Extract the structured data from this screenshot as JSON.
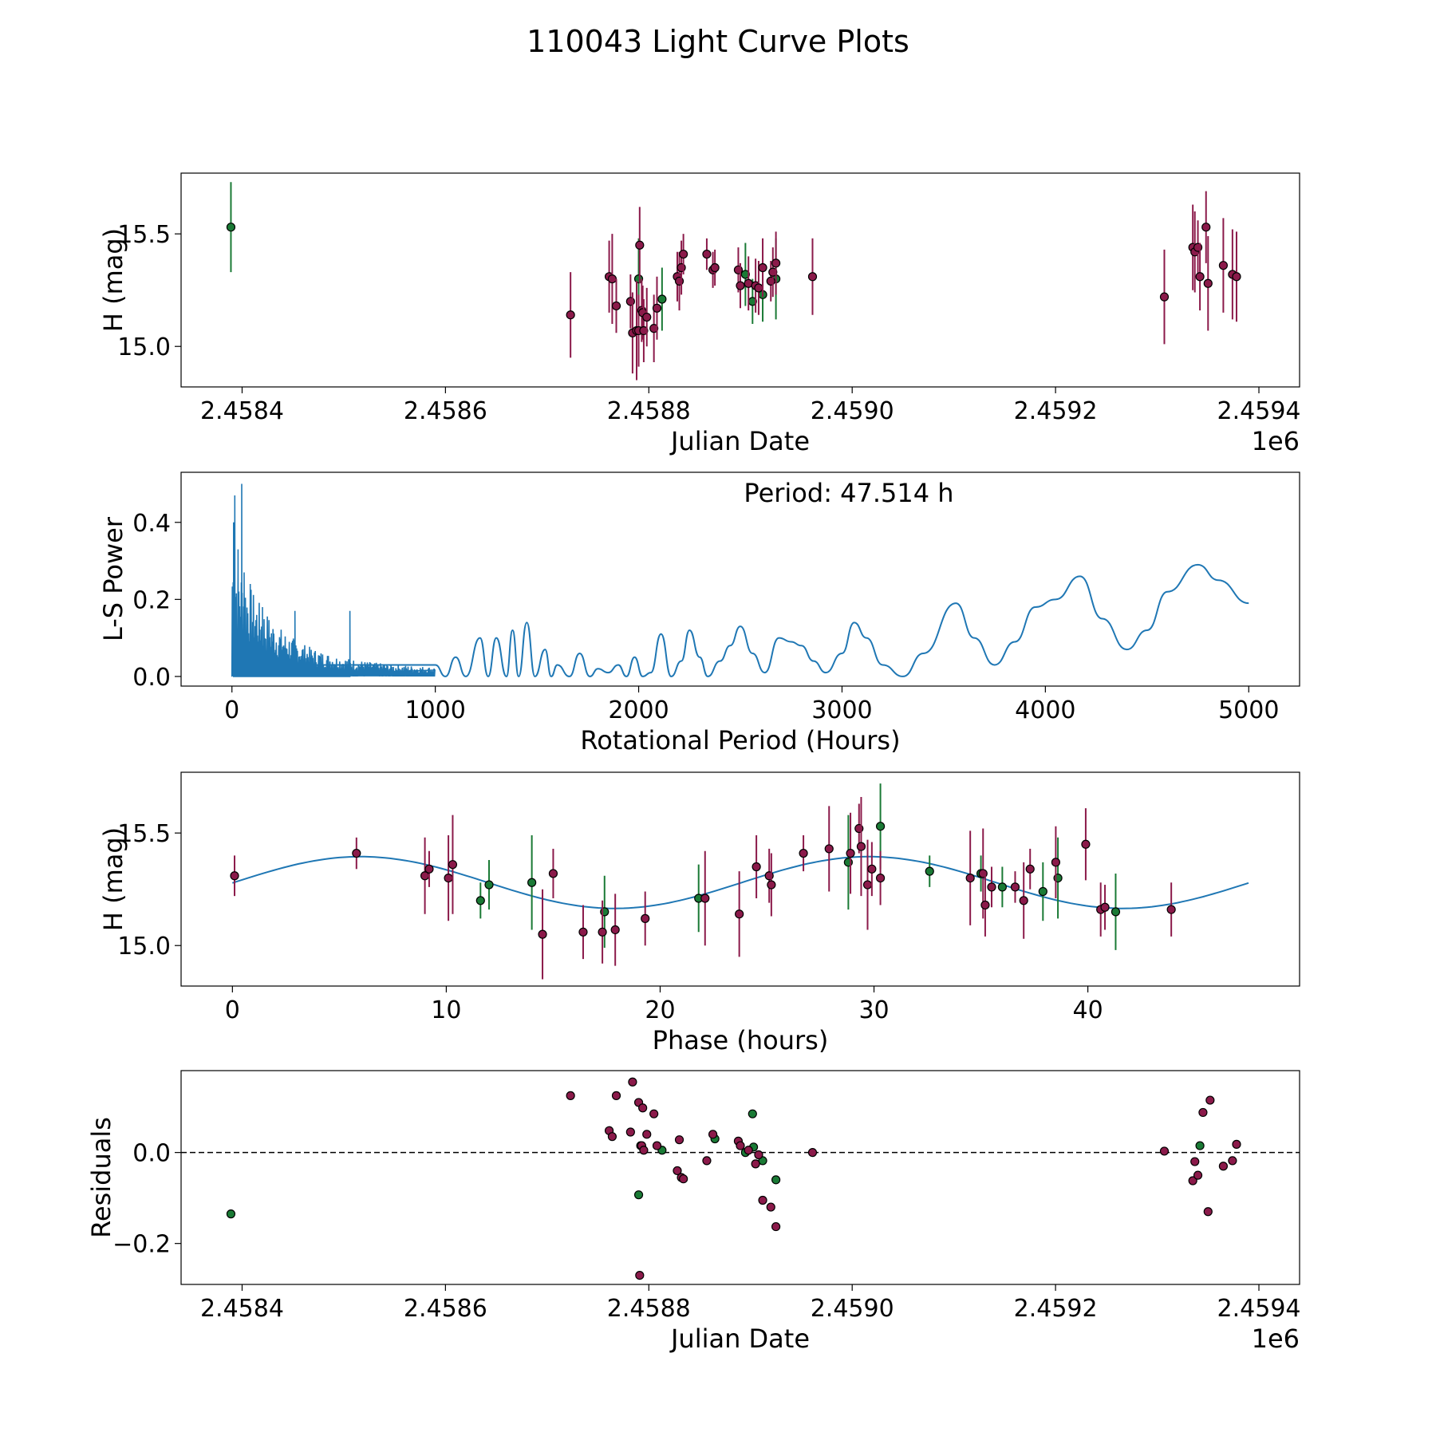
{
  "title": "110043 Light Curve Plots",
  "colors": {
    "mag": "#8b1a4a",
    "green": "#1a7a35",
    "curve": "#1f77b4",
    "dot_edge": "#000000"
  },
  "chart_data": [
    {
      "type": "scatter",
      "id": "lightcurve",
      "xlabel": "Julian Date",
      "ylabel": "H (mag)",
      "offset_label": "1e6",
      "xlim": [
        2.45834,
        2.45944
      ],
      "ylim": [
        14.82,
        15.77
      ],
      "xticks": [
        2.4584,
        2.4586,
        2.4588,
        2.459,
        2.4592,
        2.4594
      ],
      "xtick_labels": [
        "2.4584",
        "2.4586",
        "2.4588",
        "2.4590",
        "2.4592",
        "2.4594"
      ],
      "yticks": [
        15.0,
        15.5
      ],
      "ytick_labels": [
        "15.0",
        "15.5"
      ],
      "series": [
        {
          "name": "green",
          "color": "green",
          "points": [
            [
              2.458389,
              15.53,
              0.2
            ],
            [
              2.45879,
              15.3,
              0.18
            ],
            [
              2.458813,
              15.21,
              0.14
            ],
            [
              2.458895,
              15.32,
              0.14
            ],
            [
              2.458902,
              15.2,
              0.1
            ],
            [
              2.458912,
              15.23,
              0.12
            ],
            [
              2.458925,
              15.3,
              0.18
            ]
          ]
        },
        {
          "name": "magenta",
          "color": "mag",
          "points": [
            [
              2.458723,
              15.14,
              0.19
            ],
            [
              2.458761,
              15.31,
              0.16
            ],
            [
              2.458764,
              15.3,
              0.2
            ],
            [
              2.458768,
              15.18,
              0.12
            ],
            [
              2.458782,
              15.2,
              0.12
            ],
            [
              2.458784,
              15.06,
              0.18
            ],
            [
              2.458788,
              15.07,
              0.22
            ],
            [
              2.45879,
              15.07,
              0.16
            ],
            [
              2.458791,
              15.45,
              0.17
            ],
            [
              2.458793,
              15.16,
              0.14
            ],
            [
              2.458794,
              15.15,
              0.12
            ],
            [
              2.458795,
              15.07,
              0.14
            ],
            [
              2.458798,
              15.13,
              0.13
            ],
            [
              2.458805,
              15.08,
              0.15
            ],
            [
              2.458808,
              15.17,
              0.14
            ],
            [
              2.458828,
              15.31,
              0.11
            ],
            [
              2.45883,
              15.29,
              0.13
            ],
            [
              2.458832,
              15.35,
              0.12
            ],
            [
              2.458834,
              15.41,
              0.09
            ],
            [
              2.458857,
              15.41,
              0.07
            ],
            [
              2.458863,
              15.34,
              0.08
            ],
            [
              2.458865,
              15.35,
              0.08
            ],
            [
              2.458888,
              15.34,
              0.1
            ],
            [
              2.45889,
              15.27,
              0.1
            ],
            [
              2.458898,
              15.28,
              0.12
            ],
            [
              2.458905,
              15.27,
              0.12
            ],
            [
              2.458908,
              15.26,
              0.12
            ],
            [
              2.458912,
              15.35,
              0.13
            ],
            [
              2.45892,
              15.29,
              0.09
            ],
            [
              2.458922,
              15.33,
              0.11
            ],
            [
              2.458925,
              15.37,
              0.14
            ],
            [
              2.458961,
              15.31,
              0.17
            ],
            [
              2.459307,
              15.22,
              0.21
            ],
            [
              2.459335,
              15.44,
              0.19
            ],
            [
              2.459337,
              15.42,
              0.18
            ],
            [
              2.45934,
              15.44,
              0.12
            ],
            [
              2.459342,
              15.31,
              0.15
            ],
            [
              2.459348,
              15.53,
              0.16
            ],
            [
              2.45935,
              15.28,
              0.21
            ],
            [
              2.459365,
              15.36,
              0.21
            ],
            [
              2.459374,
              15.32,
              0.2
            ],
            [
              2.459378,
              15.31,
              0.2
            ]
          ]
        }
      ]
    },
    {
      "type": "line",
      "id": "periodogram",
      "xlabel": "Rotational Period (Hours)",
      "ylabel": "L-S Power",
      "annotation": "Period: 47.514 h",
      "xlim": [
        -250,
        5250
      ],
      "ylim": [
        -0.025,
        0.53
      ],
      "xticks": [
        0,
        1000,
        2000,
        3000,
        4000,
        5000
      ],
      "xtick_labels": [
        "0",
        "1000",
        "2000",
        "3000",
        "4000",
        "5000"
      ],
      "yticks": [
        0.0,
        0.2,
        0.4
      ],
      "ytick_labels": [
        "0.0",
        "0.2",
        "0.4"
      ],
      "x": [
        0,
        1000,
        1050,
        1100,
        1150,
        1220,
        1260,
        1300,
        1350,
        1380,
        1410,
        1450,
        1490,
        1540,
        1570,
        1600,
        1660,
        1710,
        1760,
        1800,
        1850,
        1900,
        1940,
        1980,
        2020,
        2060,
        2110,
        2160,
        2210,
        2250,
        2300,
        2340,
        2400,
        2450,
        2500,
        2560,
        2620,
        2690,
        2750,
        2800,
        2860,
        2920,
        3000,
        3060,
        3120,
        3200,
        3300,
        3400,
        3560,
        3650,
        3750,
        3850,
        3950,
        4050,
        4170,
        4280,
        4400,
        4500,
        4600,
        4750,
        4850,
        5000
      ],
      "values": [
        0.03,
        0.03,
        0.0,
        0.05,
        0.0,
        0.1,
        0.0,
        0.1,
        0.0,
        0.12,
        0.0,
        0.14,
        0.0,
        0.07,
        0.0,
        0.03,
        0.0,
        0.06,
        0.0,
        0.02,
        0.01,
        0.03,
        0.0,
        0.05,
        0.0,
        0.01,
        0.11,
        0.0,
        0.04,
        0.12,
        0.05,
        0.0,
        0.04,
        0.08,
        0.13,
        0.06,
        0.01,
        0.1,
        0.09,
        0.08,
        0.04,
        0.01,
        0.06,
        0.14,
        0.1,
        0.03,
        0.0,
        0.06,
        0.19,
        0.1,
        0.03,
        0.09,
        0.18,
        0.2,
        0.26,
        0.15,
        0.07,
        0.12,
        0.22,
        0.29,
        0.25,
        0.19
      ],
      "noise_region": [
        0,
        1000
      ]
    },
    {
      "type": "scatter",
      "id": "phased",
      "xlabel": "Phase (hours)",
      "ylabel": "H (mag)",
      "xlim": [
        -2.4,
        49.9
      ],
      "ylim": [
        14.82,
        15.77
      ],
      "xticks": [
        0,
        10,
        20,
        30,
        40
      ],
      "xtick_labels": [
        "0",
        "10",
        "20",
        "30",
        "40"
      ],
      "yticks": [
        15.0,
        15.5
      ],
      "ytick_labels": [
        "15.0",
        "15.5"
      ],
      "fit": {
        "mean": 15.28,
        "amplitude": 0.115,
        "peak_phase": 6.0,
        "period": 23.757,
        "x_range": [
          0,
          47.514
        ]
      },
      "series": [
        {
          "name": "green",
          "color": "green",
          "points": [
            [
              11.6,
              15.2,
              0.08
            ],
            [
              12.0,
              15.27,
              0.11
            ],
            [
              14.0,
              15.28,
              0.21
            ],
            [
              17.4,
              15.15,
              0.16
            ],
            [
              21.8,
              15.21,
              0.15
            ],
            [
              28.8,
              15.37,
              0.21
            ],
            [
              30.3,
              15.53,
              0.19
            ],
            [
              32.6,
              15.33,
              0.07
            ],
            [
              35.0,
              15.32,
              0.08
            ],
            [
              36.0,
              15.26,
              0.09
            ],
            [
              37.9,
              15.24,
              0.13
            ],
            [
              38.6,
              15.3,
              0.18
            ],
            [
              41.3,
              15.15,
              0.17
            ]
          ]
        },
        {
          "name": "magenta",
          "color": "mag",
          "points": [
            [
              0.1,
              15.31,
              0.09
            ],
            [
              5.8,
              15.41,
              0.07
            ],
            [
              9.0,
              15.31,
              0.17
            ],
            [
              9.2,
              15.34,
              0.08
            ],
            [
              10.1,
              15.3,
              0.19
            ],
            [
              10.3,
              15.36,
              0.22
            ],
            [
              14.5,
              15.05,
              0.2
            ],
            [
              15.0,
              15.32,
              0.11
            ],
            [
              16.4,
              15.06,
              0.12
            ],
            [
              17.3,
              15.06,
              0.14
            ],
            [
              17.9,
              15.07,
              0.16
            ],
            [
              19.3,
              15.12,
              0.12
            ],
            [
              22.1,
              15.21,
              0.21
            ],
            [
              23.7,
              15.14,
              0.19
            ],
            [
              24.5,
              15.35,
              0.14
            ],
            [
              25.1,
              15.31,
              0.12
            ],
            [
              25.2,
              15.27,
              0.14
            ],
            [
              26.7,
              15.41,
              0.08
            ],
            [
              27.9,
              15.43,
              0.19
            ],
            [
              28.9,
              15.41,
              0.18
            ],
            [
              29.3,
              15.52,
              0.11
            ],
            [
              29.4,
              15.44,
              0.22
            ],
            [
              29.7,
              15.27,
              0.2
            ],
            [
              29.9,
              15.34,
              0.12
            ],
            [
              30.3,
              15.3,
              0.12
            ],
            [
              34.5,
              15.3,
              0.21
            ],
            [
              35.1,
              15.32,
              0.2
            ],
            [
              35.2,
              15.18,
              0.14
            ],
            [
              35.5,
              15.26,
              0.09
            ],
            [
              36.6,
              15.26,
              0.07
            ],
            [
              37.0,
              15.2,
              0.17
            ],
            [
              37.3,
              15.34,
              0.09
            ],
            [
              38.5,
              15.37,
              0.16
            ],
            [
              39.9,
              15.45,
              0.16
            ],
            [
              40.6,
              15.16,
              0.12
            ],
            [
              40.8,
              15.17,
              0.1
            ],
            [
              43.9,
              15.16,
              0.12
            ]
          ]
        }
      ]
    },
    {
      "type": "scatter",
      "id": "residuals",
      "xlabel": "Julian Date",
      "ylabel": "Residuals",
      "offset_label": "1e6",
      "xlim": [
        2.45834,
        2.45944
      ],
      "ylim": [
        -0.29,
        0.18
      ],
      "xticks": [
        2.4584,
        2.4586,
        2.4588,
        2.459,
        2.4592,
        2.4594
      ],
      "xtick_labels": [
        "2.4584",
        "2.4586",
        "2.4588",
        "2.4590",
        "2.4592",
        "2.4594"
      ],
      "yticks": [
        -0.2,
        0.0
      ],
      "ytick_labels": [
        "−0.2",
        "0.0"
      ],
      "zero_line": 0.0,
      "series": [
        {
          "name": "green",
          "color": "green",
          "points": [
            [
              2.458389,
              -0.135
            ],
            [
              2.45879,
              -0.093
            ],
            [
              2.458792,
              0.015
            ],
            [
              2.458813,
              0.005
            ],
            [
              2.458865,
              0.03
            ],
            [
              2.458895,
              0.0
            ],
            [
              2.458902,
              0.085
            ],
            [
              2.458903,
              0.012
            ],
            [
              2.458912,
              -0.018
            ],
            [
              2.458925,
              -0.06
            ],
            [
              2.459342,
              0.015
            ]
          ]
        },
        {
          "name": "magenta",
          "color": "mag",
          "points": [
            [
              2.458723,
              0.125
            ],
            [
              2.458761,
              0.048
            ],
            [
              2.458764,
              0.035
            ],
            [
              2.458768,
              0.125
            ],
            [
              2.458782,
              0.045
            ],
            [
              2.458784,
              0.155
            ],
            [
              2.45879,
              0.11
            ],
            [
              2.458791,
              -0.27
            ],
            [
              2.458793,
              0.015
            ],
            [
              2.458794,
              0.098
            ],
            [
              2.458795,
              0.005
            ],
            [
              2.458798,
              0.04
            ],
            [
              2.458805,
              0.085
            ],
            [
              2.458808,
              0.015
            ],
            [
              2.458828,
              -0.04
            ],
            [
              2.45883,
              0.028
            ],
            [
              2.458832,
              -0.055
            ],
            [
              2.458834,
              -0.058
            ],
            [
              2.458857,
              -0.018
            ],
            [
              2.458863,
              0.04
            ],
            [
              2.458888,
              0.025
            ],
            [
              2.45889,
              0.015
            ],
            [
              2.458898,
              0.005
            ],
            [
              2.458905,
              -0.025
            ],
            [
              2.458908,
              -0.005
            ],
            [
              2.458912,
              -0.105
            ],
            [
              2.45892,
              -0.12
            ],
            [
              2.458925,
              -0.163
            ],
            [
              2.458961,
              0.0
            ],
            [
              2.459307,
              0.003
            ],
            [
              2.459335,
              -0.062
            ],
            [
              2.459337,
              -0.02
            ],
            [
              2.45934,
              -0.05
            ],
            [
              2.459345,
              0.088
            ],
            [
              2.45935,
              -0.13
            ],
            [
              2.459352,
              0.115
            ],
            [
              2.459365,
              -0.03
            ],
            [
              2.459374,
              -0.018
            ],
            [
              2.459378,
              0.018
            ]
          ]
        }
      ]
    }
  ]
}
